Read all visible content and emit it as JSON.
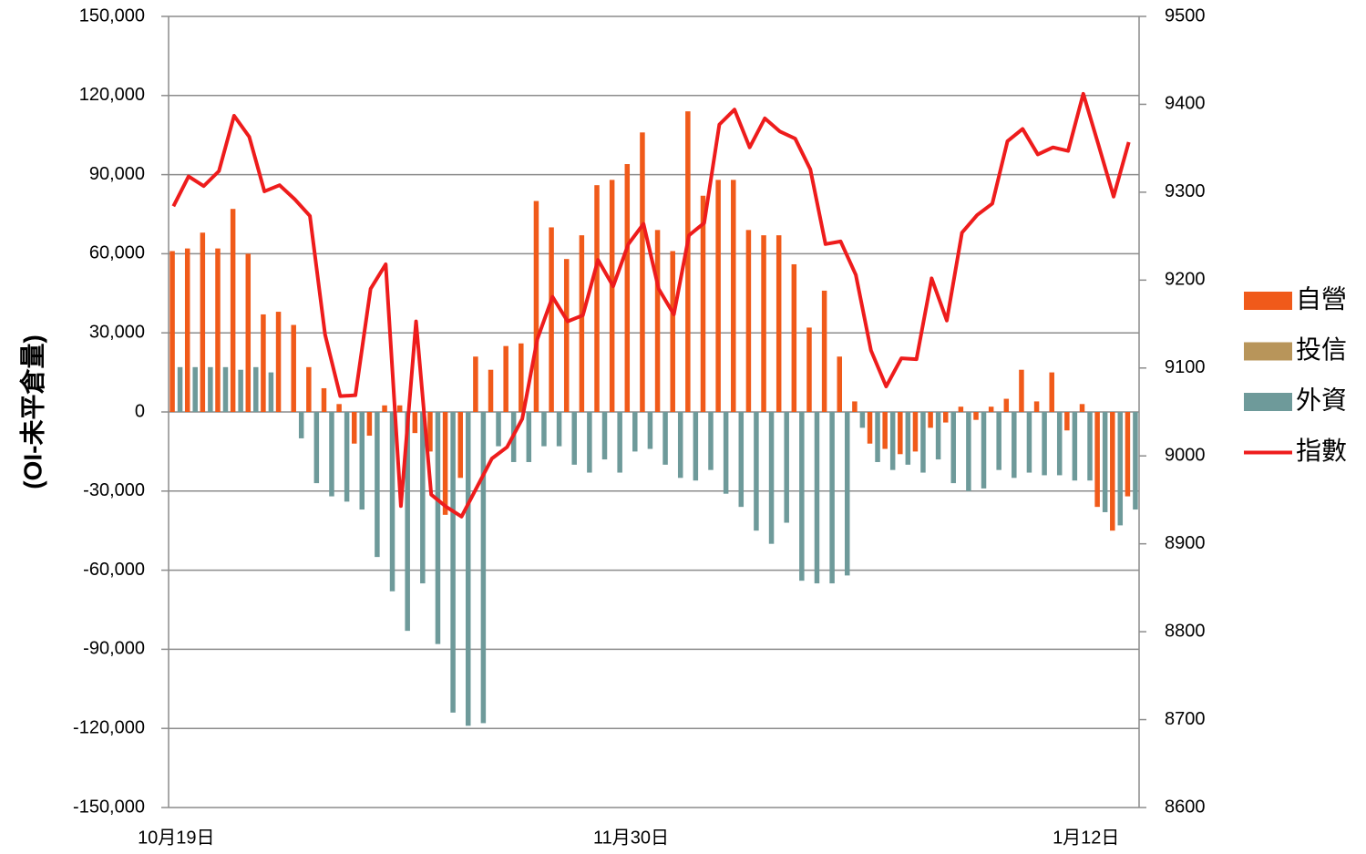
{
  "chart_data": {
    "type": "bar",
    "y_label": "(OI-未平倉量)",
    "categories": [
      "10月19日",
      null,
      null,
      null,
      null,
      null,
      null,
      null,
      null,
      null,
      null,
      null,
      null,
      null,
      null,
      null,
      null,
      null,
      null,
      null,
      null,
      null,
      null,
      null,
      null,
      null,
      null,
      null,
      null,
      null,
      "11月30日",
      null,
      null,
      null,
      null,
      null,
      null,
      null,
      null,
      null,
      null,
      null,
      null,
      null,
      null,
      null,
      null,
      null,
      null,
      null,
      null,
      null,
      null,
      null,
      null,
      null,
      null,
      null,
      null,
      null,
      "1月12日",
      null,
      null,
      null
    ],
    "series": [
      {
        "name": "自營",
        "color": "#f05a1a",
        "values": [
          61000,
          62000,
          68000,
          62000,
          77000,
          60000,
          37000,
          38000,
          33000,
          17000,
          9000,
          3000,
          -12000,
          -9000,
          2500,
          2500,
          -8000,
          -15000,
          -39000,
          -25000,
          21000,
          16000,
          25000,
          26000,
          80000,
          70000,
          58000,
          67000,
          86000,
          88000,
          94000,
          106000,
          69000,
          61000,
          114000,
          82000,
          88000,
          88000,
          69000,
          67000,
          67000,
          56000,
          32000,
          46000,
          21000,
          4000,
          -12000,
          -14000,
          -16000,
          -15000,
          -6000,
          -4000,
          2000,
          -3000,
          2000,
          5000,
          16000,
          4000,
          15000,
          -7000,
          3000,
          -36000,
          -45000,
          -32000
        ]
      },
      {
        "name": "投信",
        "color": "#b8955a",
        "values": [
          0,
          0,
          0,
          0,
          0,
          0,
          0,
          0,
          0,
          0,
          0,
          0,
          0,
          0,
          0,
          0,
          0,
          0,
          0,
          0,
          0,
          0,
          0,
          0,
          0,
          0,
          0,
          0,
          0,
          0,
          0,
          0,
          0,
          0,
          0,
          0,
          0,
          0,
          0,
          0,
          0,
          0,
          0,
          0,
          0,
          0,
          0,
          0,
          0,
          0,
          0,
          0,
          0,
          0,
          0,
          0,
          0,
          0,
          0,
          0,
          0,
          0,
          0,
          0
        ]
      },
      {
        "name": "外資",
        "color": "#6e9a9a",
        "values": [
          17000,
          17000,
          17000,
          17000,
          16000,
          17000,
          15000,
          0,
          -10000,
          -27000,
          -32000,
          -34000,
          -37000,
          -55000,
          -68000,
          -83000,
          -65000,
          -88000,
          -114000,
          -119000,
          -118000,
          -13000,
          -19000,
          -19000,
          -13000,
          -13000,
          -20000,
          -23000,
          -18000,
          -23000,
          -15000,
          -14000,
          -20000,
          -25000,
          -26000,
          -22000,
          -31000,
          -36000,
          -45000,
          -50000,
          -42000,
          -64000,
          -65000,
          -65000,
          -62000,
          -6000,
          -19000,
          -22000,
          -20000,
          -23000,
          -18000,
          -27000,
          -30000,
          -29000,
          -22000,
          -25000,
          -23000,
          -24000,
          -24000,
          -26000,
          -26000,
          -38000,
          -43000,
          -37000
        ]
      },
      {
        "name": "指數",
        "color": "#ee1c1c",
        "type": "line",
        "axis": "y2",
        "values": [
          9284,
          9318,
          9307,
          9324,
          9387,
          9363,
          9301,
          9308,
          9292,
          9273,
          9138,
          9068,
          9069,
          9190,
          9218,
          8943,
          9153,
          8956,
          8942,
          8931,
          8964,
          8997,
          9010,
          9042,
          9133,
          9181,
          9153,
          9160,
          9223,
          9193,
          9241,
          9264,
          9190,
          9161,
          9251,
          9265,
          9377,
          9394,
          9351,
          9384,
          9369,
          9361,
          9326,
          9241,
          9244,
          9206,
          9120,
          9079,
          9111,
          9110,
          9202,
          9154,
          9254,
          9274,
          9287,
          9358,
          9372,
          9343,
          9351,
          9347,
          9412,
          9354,
          9295,
          9357
        ]
      }
    ],
    "ylim": [
      -150000,
      150000
    ],
    "yticks": [
      {
        "value": -150000,
        "label": "-150,000"
      },
      {
        "value": -120000,
        "label": "-120,000"
      },
      {
        "value": -90000,
        "label": "-90,000"
      },
      {
        "value": -60000,
        "label": "-60,000"
      },
      {
        "value": -30000,
        "label": "-30,000"
      },
      0,
      {
        "value": 30000,
        "label": "30,000"
      },
      {
        "value": 60000,
        "label": "60,000"
      },
      {
        "value": 90000,
        "label": "90,000"
      },
      {
        "value": 120000,
        "label": "120,000"
      },
      {
        "value": 150000,
        "label": "150,000"
      }
    ],
    "y2lim": [
      8600,
      9500
    ],
    "y2ticks": [
      8600,
      8700,
      8800,
      8900,
      9000,
      9100,
      9200,
      9300,
      9400,
      9500
    ],
    "grid": true,
    "legend": "right"
  }
}
